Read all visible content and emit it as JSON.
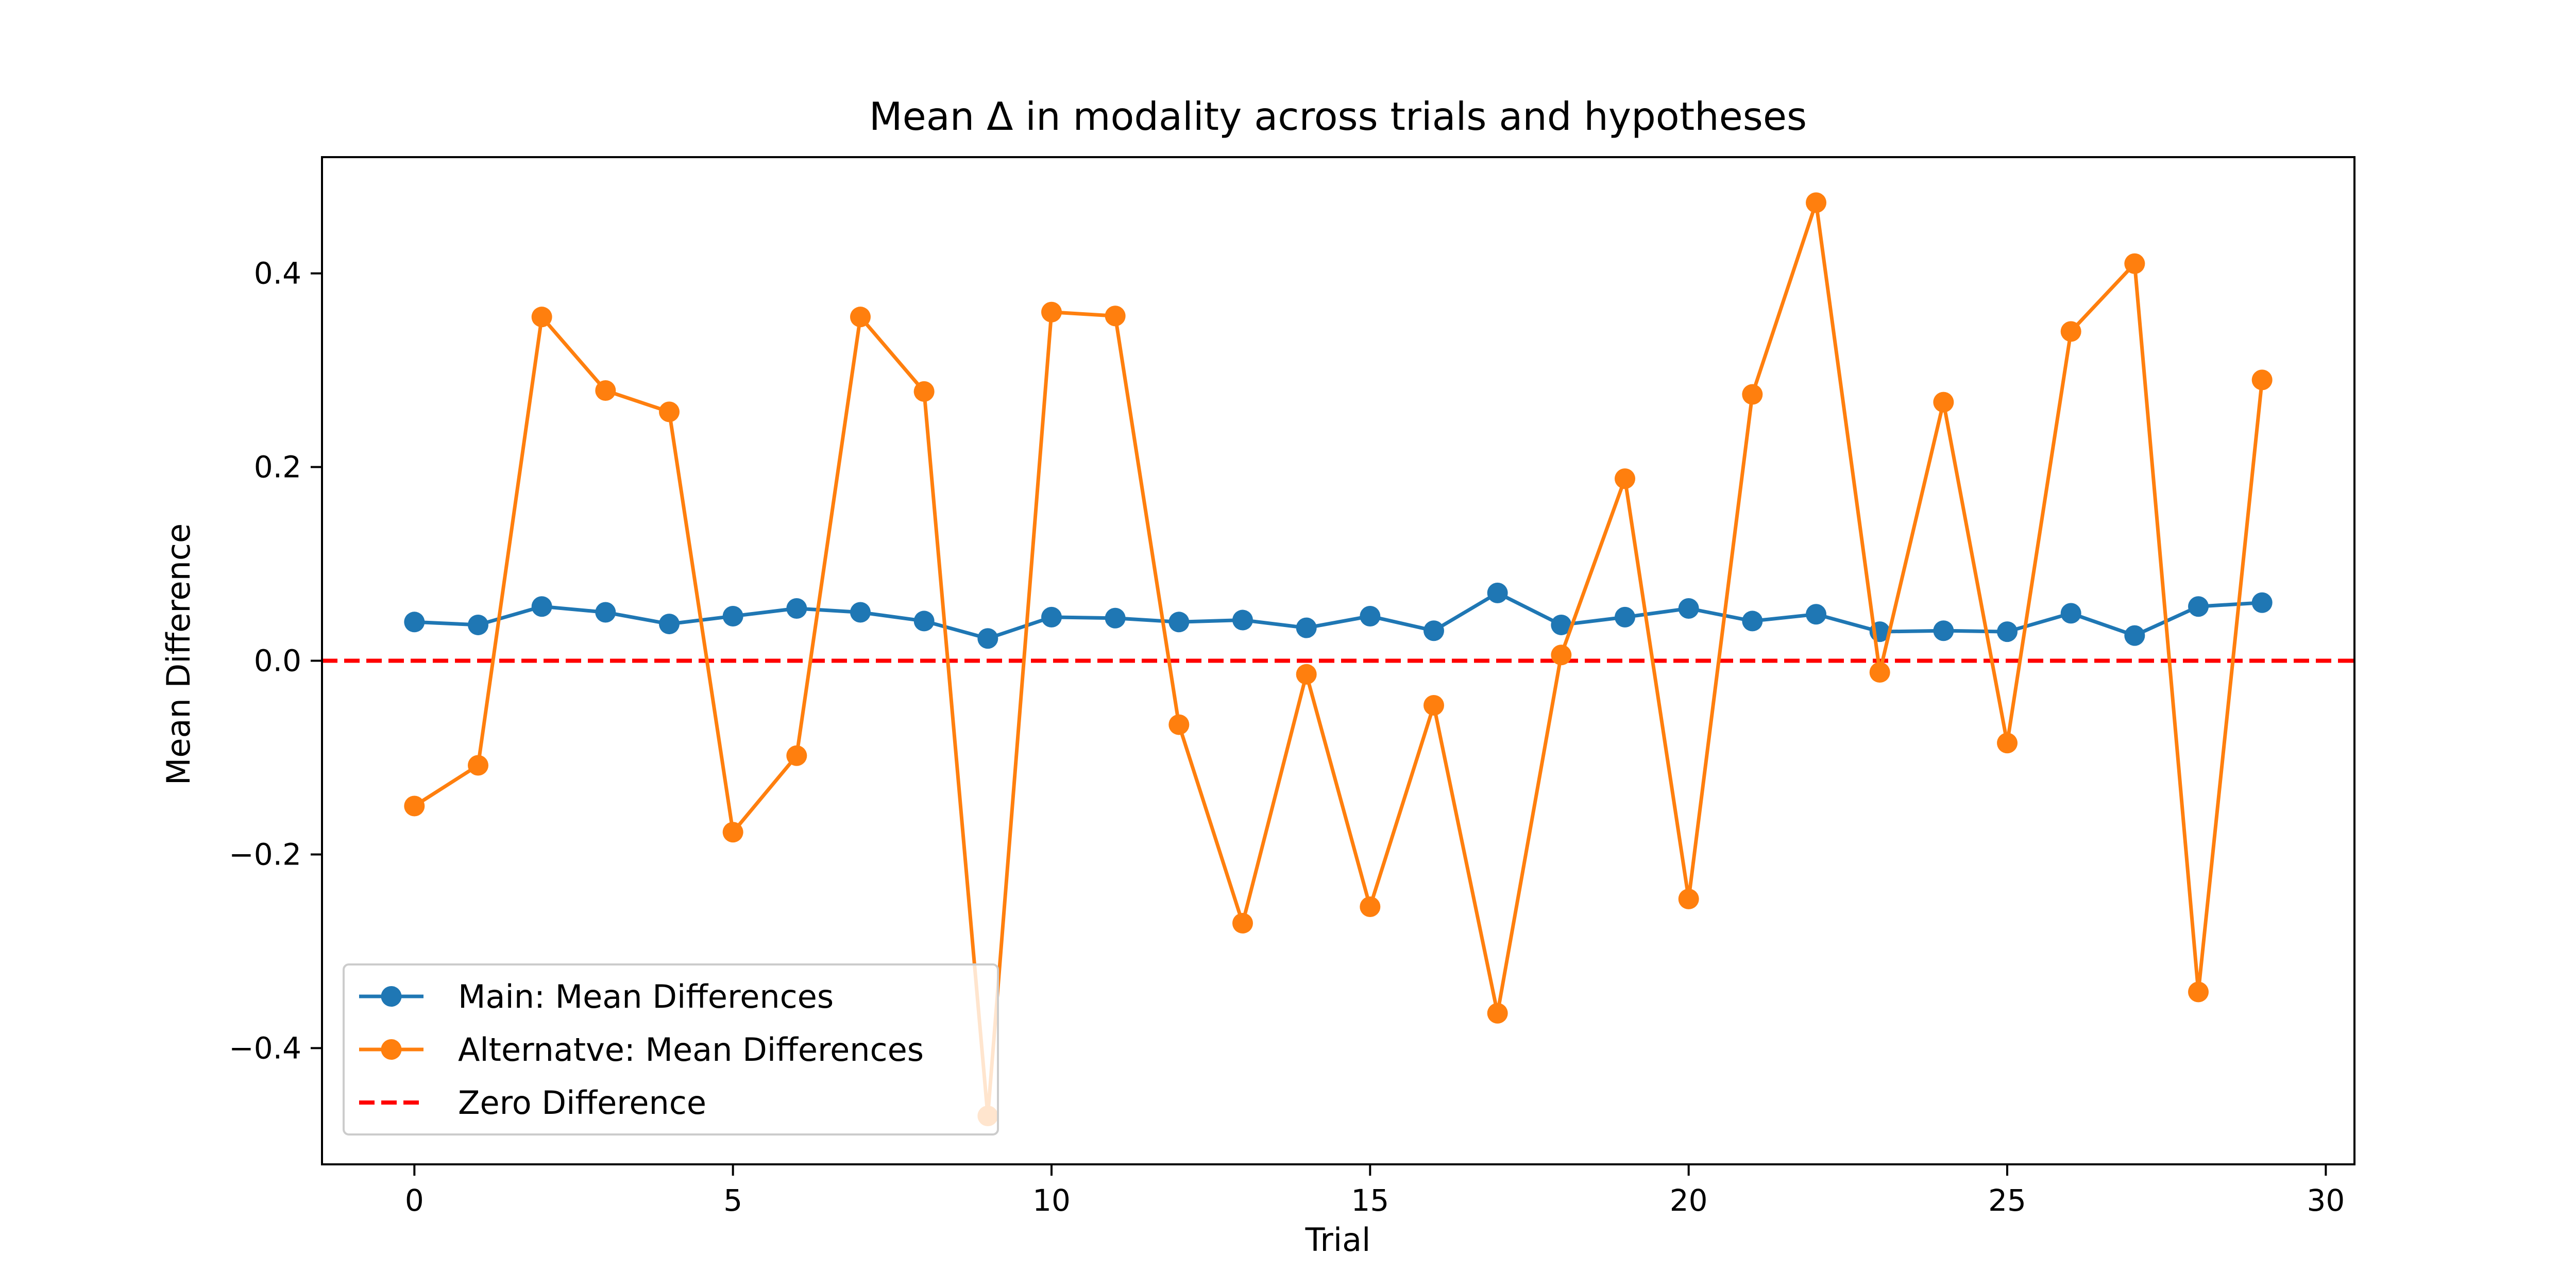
{
  "chart_data": {
    "type": "line",
    "title": "Mean Δ in modality across trials and hypotheses",
    "xlabel": "Trial",
    "ylabel": "Mean Difference",
    "xlim": [
      -1.45,
      30.45
    ],
    "ylim": [
      -0.52,
      0.52
    ],
    "xticks": [
      0,
      5,
      10,
      15,
      20,
      25,
      30
    ],
    "xtick_labels": [
      "0",
      "5",
      "10",
      "15",
      "20",
      "25",
      "30"
    ],
    "yticks": [
      -0.4,
      -0.2,
      0.0,
      0.2,
      0.4
    ],
    "ytick_labels": [
      "−0.4",
      "−0.2",
      "0.0",
      "0.2",
      "0.4"
    ],
    "grid": false,
    "legend_position": "lower-left",
    "x": [
      0,
      1,
      2,
      3,
      4,
      5,
      6,
      7,
      8,
      9,
      10,
      11,
      12,
      13,
      14,
      15,
      16,
      17,
      18,
      19,
      20,
      21,
      22,
      23,
      24,
      25,
      26,
      27,
      28,
      29
    ],
    "series": [
      {
        "name": "Main: Mean Differences",
        "color": "#1f77b4",
        "marker": "circle",
        "linestyle": "solid",
        "values": [
          0.04,
          0.037,
          0.056,
          0.05,
          0.038,
          0.046,
          0.054,
          0.05,
          0.041,
          0.023,
          0.045,
          0.044,
          0.04,
          0.042,
          0.034,
          0.046,
          0.031,
          0.07,
          0.037,
          0.045,
          0.054,
          0.041,
          0.048,
          0.03,
          0.031,
          0.03,
          0.049,
          0.026,
          0.056,
          0.06
        ]
      },
      {
        "name": "Alternatve: Mean Differences",
        "color": "#ff7f0e",
        "marker": "circle",
        "linestyle": "solid",
        "values": [
          -0.15,
          -0.108,
          0.355,
          0.279,
          0.257,
          -0.177,
          -0.098,
          0.355,
          0.278,
          -0.47,
          0.36,
          0.356,
          -0.066,
          -0.271,
          -0.014,
          -0.254,
          -0.046,
          -0.364,
          0.006,
          0.188,
          -0.246,
          0.275,
          0.473,
          -0.012,
          0.267,
          -0.085,
          0.34,
          0.41,
          -0.342,
          0.29
        ]
      }
    ],
    "reference_lines": [
      {
        "name": "Zero Difference",
        "y": 0.0,
        "color": "#ff0000",
        "linestyle": "dashed"
      }
    ]
  }
}
